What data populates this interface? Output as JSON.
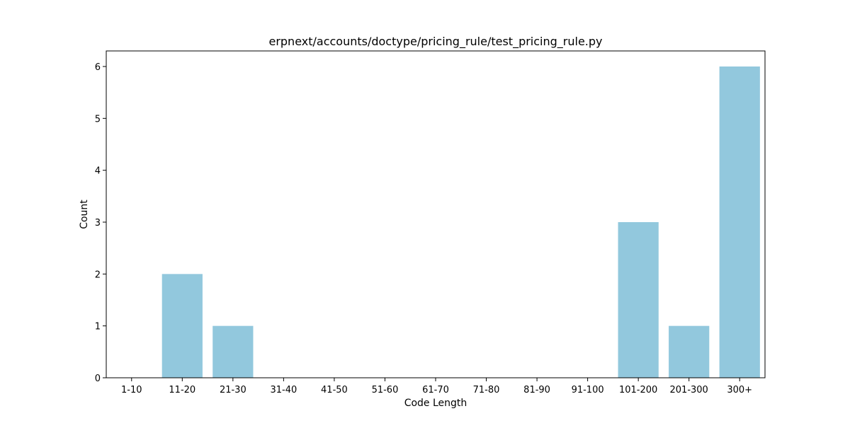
{
  "chart_data": {
    "type": "bar",
    "title": "erpnext/accounts/doctype/pricing_rule/test_pricing_rule.py",
    "xlabel": "Code Length",
    "ylabel": "Count",
    "categories": [
      "1-10",
      "11-20",
      "21-30",
      "31-40",
      "41-50",
      "51-60",
      "61-70",
      "71-80",
      "81-90",
      "91-100",
      "101-200",
      "201-300",
      "300+"
    ],
    "values": [
      0,
      2,
      1,
      0,
      0,
      0,
      0,
      0,
      0,
      0,
      3,
      1,
      6
    ],
    "ylim": [
      0,
      6.3
    ],
    "yticks": [
      "0",
      "1",
      "2",
      "3",
      "4",
      "5",
      "6"
    ],
    "grid": false,
    "legend": "none",
    "bar_color": "#92c8dd"
  }
}
